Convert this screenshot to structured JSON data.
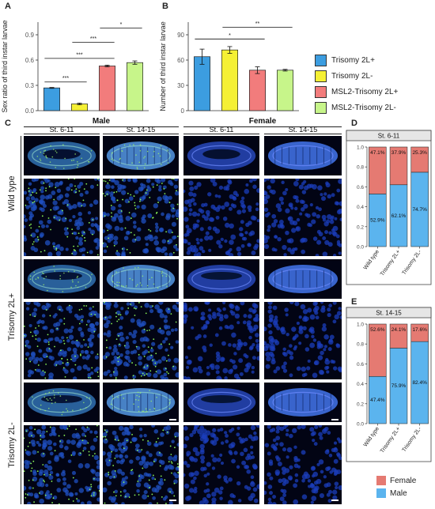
{
  "panelA": {
    "letter": "A",
    "chart_data": {
      "type": "bar",
      "ylabel": "Sex ratio of third instar larvae",
      "yticks": [
        "0.0",
        "0.3",
        "0.6",
        "0.9"
      ],
      "ylim": [
        0,
        1.05
      ],
      "categories": [
        "Trisomy 2L+",
        "Trisomy 2L-",
        "MSL2-Trisomy 2L+",
        "MSL2-Trisomy 2L-"
      ],
      "values": [
        0.27,
        0.08,
        0.53,
        0.57
      ],
      "errors": [
        0.005,
        0.01,
        0.01,
        0.02
      ],
      "colors": [
        "#3c9de0",
        "#f5f034",
        "#f27c7c",
        "#c7f58a"
      ],
      "significance": [
        {
          "from": 0,
          "to": 1,
          "y": 0.34,
          "label": "***"
        },
        {
          "from": 0,
          "to": 2,
          "y": 0.62,
          "label": "***"
        },
        {
          "from": 1,
          "to": 2,
          "y": 0.81,
          "label": "***"
        },
        {
          "from": 2,
          "to": 3,
          "y": 0.98,
          "label": "*"
        }
      ]
    }
  },
  "panelB": {
    "letter": "B",
    "chart_data": {
      "type": "bar",
      "ylabel": "Number of third instar larvae",
      "yticks": [
        "0",
        "30",
        "60",
        "90"
      ],
      "ylim": [
        0,
        105
      ],
      "categories": [
        "Trisomy 2L+",
        "Trisomy 2L-",
        "MSL2-Trisomy 2L+",
        "MSL2-Trisomy 2L-"
      ],
      "values": [
        64,
        72,
        48,
        48
      ],
      "errors": [
        9,
        4,
        4,
        1
      ],
      "colors": [
        "#3c9de0",
        "#f5f034",
        "#f27c7c",
        "#c7f58a"
      ],
      "significance": [
        {
          "from": 0,
          "to": 2,
          "y": 85,
          "label": "*"
        },
        {
          "from": 1,
          "to": 3,
          "y": 99,
          "label": "**"
        }
      ]
    }
  },
  "legend": [
    {
      "label": "Trisomy 2L+",
      "color": "#3c9de0"
    },
    {
      "label": "Trisomy 2L-",
      "color": "#f5f034"
    },
    {
      "label": "MSL2-Trisomy 2L+",
      "color": "#f27c7c"
    },
    {
      "label": "MSL2-Trisomy 2L-",
      "color": "#c7f58a"
    }
  ],
  "panelC": {
    "letter": "C",
    "male": "Male",
    "female": "Female",
    "stages": [
      "St. 6-11",
      "St. 14-15",
      "St. 6-11",
      "St. 14-15"
    ],
    "rows": [
      "Wild type",
      "Trisomy 2L+",
      "Trisomy 2L-"
    ]
  },
  "panelD": {
    "letter": "D",
    "chart_data": {
      "type": "bar",
      "title": "St. 6-11",
      "categories": [
        "Wild type",
        "Trisomy 2L+",
        "Trisomy 2L-"
      ],
      "yticks": [
        "0.0",
        "0.2",
        "0.4",
        "0.6",
        "0.8",
        "1.0"
      ],
      "ylim": [
        0,
        1
      ],
      "series": [
        {
          "name": "Male",
          "values": [
            0.529,
            0.621,
            0.747
          ],
          "labels": [
            "52.9%",
            "62.1%",
            "74.7%"
          ],
          "color": "#5bb4ee"
        },
        {
          "name": "Female",
          "values": [
            0.471,
            0.379,
            0.253
          ],
          "labels": [
            "47.1%",
            "37.9%",
            "25.3%"
          ],
          "color": "#e57a72"
        }
      ]
    }
  },
  "panelE": {
    "letter": "E",
    "chart_data": {
      "type": "bar",
      "title": "St. 14-15",
      "categories": [
        "Wild type",
        "Trisomy 2L+",
        "Trisomy 2L-"
      ],
      "yticks": [
        "0.0",
        "0.2",
        "0.4",
        "0.6",
        "0.8",
        "1.0"
      ],
      "ylim": [
        0,
        1
      ],
      "series": [
        {
          "name": "Male",
          "values": [
            0.474,
            0.759,
            0.824
          ],
          "labels": [
            "47.4%",
            "75.9%",
            "82.4%"
          ],
          "color": "#5bb4ee"
        },
        {
          "name": "Female",
          "values": [
            0.526,
            0.241,
            0.176
          ],
          "labels": [
            "52.6%",
            "24.1%",
            "17.6%"
          ],
          "color": "#e57a72"
        }
      ]
    }
  },
  "stackLegend": [
    {
      "label": "Female",
      "color": "#e57a72"
    },
    {
      "label": "Male",
      "color": "#5bb4ee"
    }
  ]
}
